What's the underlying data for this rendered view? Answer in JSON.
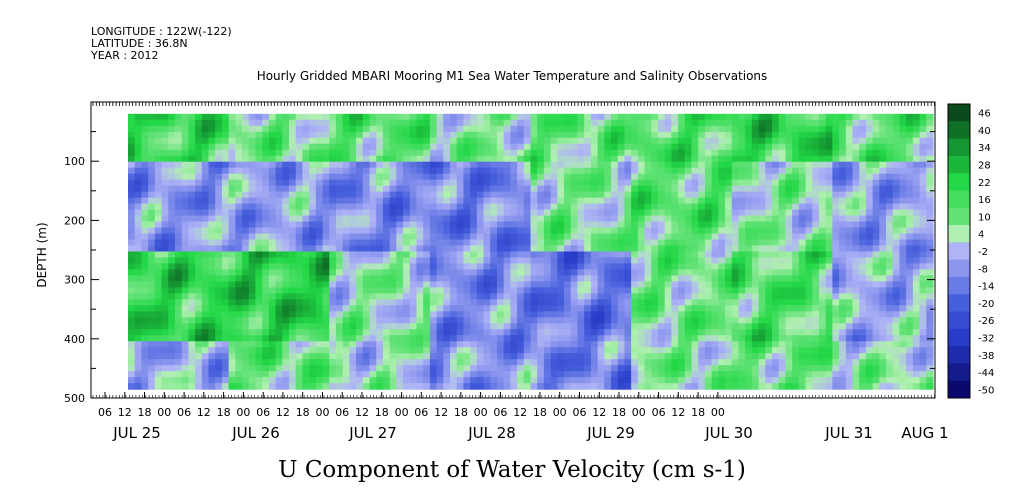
{
  "header": {
    "longitude": "LONGITUDE : 122W(-122)",
    "latitude": "LATITUDE : 36.8N",
    "year": "YEAR : 2012"
  },
  "chart_data": {
    "type": "heatmap",
    "title": "Hourly Gridded MBARI Mooring M1 Sea Water Temperature and Salinity Observations",
    "xlabel": "U Component of Water Velocity (cm s-1)",
    "ylabel": "DEPTH (m)",
    "ylim": [
      500,
      0
    ],
    "y_ticks": [
      100,
      200,
      300,
      400,
      500
    ],
    "hour_ticks": [
      "06",
      "12",
      "18",
      "00",
      "06",
      "12",
      "18",
      "00",
      "06",
      "12",
      "18",
      "00",
      "06",
      "12",
      "18",
      "00",
      "06",
      "12",
      "18",
      "00",
      "06",
      "12",
      "18",
      "00",
      "06",
      "12",
      "18",
      "00",
      "06",
      "12",
      "18",
      "00"
    ],
    "day_labels": [
      "JUL 25",
      "JUL 26",
      "JUL 27",
      "JUL 28",
      "JUL 29",
      "JUL 30",
      "JUL 31",
      "AUG  1"
    ],
    "colorbar": {
      "levels": [
        46,
        40,
        34,
        28,
        22,
        16,
        10,
        4,
        -2,
        -8,
        -14,
        -20,
        -26,
        -32,
        -38,
        -44,
        -50
      ],
      "colors": {
        "strong_negative": "#0a0a6e",
        "negative": "#3a4fd8",
        "weak_negative": "#a3aaf0",
        "weak_positive": "#a6f0a6",
        "positive": "#22e04a",
        "strong_positive": "#0b4a1a"
      }
    },
    "grid": false,
    "series": [
      {
        "depth_range": [
          20,
          100
        ],
        "values_by_day": [
          18,
          8,
          12,
          6,
          10,
          14,
          20,
          12
        ]
      },
      {
        "depth_range": [
          100,
          250
        ],
        "values_by_day": [
          -8,
          -6,
          -10,
          -12,
          6,
          12,
          4,
          -6
        ]
      },
      {
        "depth_range": [
          250,
          400
        ],
        "values_by_day": [
          20,
          22,
          4,
          -10,
          -14,
          8,
          14,
          -4
        ]
      },
      {
        "depth_range": [
          400,
          485
        ],
        "values_by_day": [
          -4,
          10,
          2,
          -8,
          -12,
          6,
          10,
          4
        ]
      }
    ]
  }
}
